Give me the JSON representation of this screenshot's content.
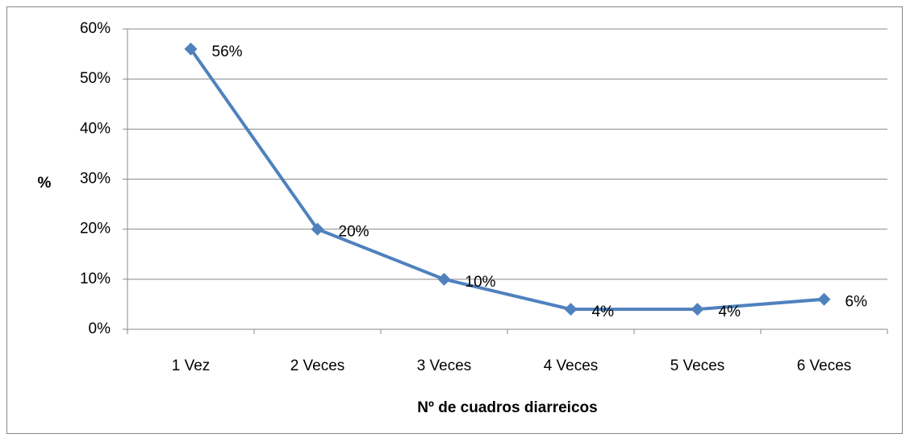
{
  "chart_data": {
    "type": "line",
    "x_label": "Nº de cuadros diarreicos",
    "y_label": "%",
    "categories": [
      "1 Vez",
      "2 Veces",
      "3 Veces",
      "4 Veces",
      "5 Veces",
      "6 Veces"
    ],
    "series": [
      {
        "name": "%",
        "color": "#4f81bd",
        "values": [
          56,
          20,
          10,
          4,
          4,
          6
        ],
        "value_labels": [
          "56%",
          "20%",
          "10%",
          "4%",
          "4%",
          "6%"
        ]
      }
    ],
    "ylim": [
      0,
      60
    ],
    "yticks": [
      {
        "value": 0,
        "label": "0%"
      },
      {
        "value": 10,
        "label": "10%"
      },
      {
        "value": 20,
        "label": "20%"
      },
      {
        "value": 30,
        "label": "30%"
      },
      {
        "value": 40,
        "label": "40%"
      },
      {
        "value": 50,
        "label": "50%"
      },
      {
        "value": 60,
        "label": "60%"
      }
    ],
    "grid": true
  }
}
